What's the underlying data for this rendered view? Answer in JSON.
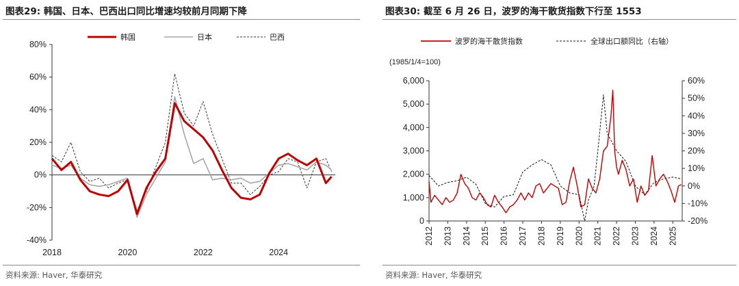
{
  "left_panel": {
    "title": "图表29: 韩国、日本、巴西出口同比增速均较前月同期下降",
    "source": "资料来源: Haver, 华泰研究"
  },
  "right_panel": {
    "title": "图表30: 截至 6 月 26 日，波罗的海干散货指数下行至 1553",
    "source": "资料来源: Haver, 华泰研究"
  },
  "chart_data": [
    {
      "type": "line",
      "title": "",
      "xlabel": "",
      "ylabel": "",
      "x_range": [
        2018.0,
        2025.5
      ],
      "ylim": [
        -40,
        80
      ],
      "y_ticks": [
        "-40%",
        "-20%",
        "0%",
        "20%",
        "40%",
        "60%",
        "80%"
      ],
      "y_tick_values": [
        -40,
        -20,
        0,
        20,
        40,
        60,
        80
      ],
      "x_ticks": [
        "2018",
        "2020",
        "2022",
        "2024"
      ],
      "x_tick_values": [
        2018,
        2020,
        2022,
        2024
      ],
      "legend_position": "top",
      "grid": false,
      "x": [
        2018.0,
        2018.25,
        2018.5,
        2018.75,
        2019.0,
        2019.25,
        2019.5,
        2019.75,
        2020.0,
        2020.25,
        2020.5,
        2020.75,
        2021.0,
        2021.25,
        2021.5,
        2021.75,
        2022.0,
        2022.25,
        2022.5,
        2022.75,
        2023.0,
        2023.25,
        2023.5,
        2023.75,
        2024.0,
        2024.25,
        2024.5,
        2024.75,
        2025.0,
        2025.25,
        2025.4
      ],
      "series": [
        {
          "name": "韩国",
          "color": "#c00000",
          "style": "solid-thick",
          "values": [
            10,
            3,
            8,
            -3,
            -10,
            -12,
            -13,
            -10,
            -3,
            -24,
            -8,
            2,
            10,
            44,
            33,
            28,
            23,
            15,
            3,
            -8,
            -14,
            -15,
            -12,
            1,
            10,
            13,
            9,
            6,
            10,
            -5,
            -1
          ]
        },
        {
          "name": "日本",
          "color": "#a6a6a6",
          "style": "solid",
          "values": [
            6,
            4,
            6,
            -2,
            -6,
            -7,
            -6,
            -4,
            -2,
            -26,
            -12,
            -2,
            8,
            48,
            25,
            7,
            10,
            -3,
            -2,
            -3,
            -2,
            -5,
            -4,
            1,
            6,
            7,
            5,
            3,
            8,
            6,
            3
          ]
        },
        {
          "name": "巴西",
          "color": "#333333",
          "style": "dashed",
          "values": [
            12,
            8,
            20,
            2,
            -4,
            -2,
            -8,
            -5,
            -3,
            -22,
            -10,
            5,
            20,
            62,
            38,
            30,
            45,
            25,
            10,
            -5,
            -5,
            -12,
            -7,
            0,
            2,
            10,
            8,
            -8,
            8,
            10,
            2
          ]
        }
      ]
    },
    {
      "type": "line",
      "title": "",
      "y_unit": "(1985/1/4=100)",
      "xlabel": "",
      "ylabel": "",
      "x_range": [
        2012.0,
        2025.5
      ],
      "ylim": [
        0,
        6000
      ],
      "y2lim": [
        -20,
        60
      ],
      "y_ticks": [
        "0",
        "1,000",
        "2,000",
        "3,000",
        "4,000",
        "5,000",
        "6,000"
      ],
      "y_tick_values": [
        0,
        1000,
        2000,
        3000,
        4000,
        5000,
        6000
      ],
      "y2_ticks": [
        "-20%",
        "-10%",
        "0%",
        "10%",
        "20%",
        "30%",
        "40%",
        "50%",
        "60%"
      ],
      "y2_tick_values": [
        -20,
        -10,
        0,
        10,
        20,
        30,
        40,
        50,
        60
      ],
      "x_ticks": [
        "2012",
        "2013",
        "2014",
        "2015",
        "2016",
        "2017",
        "2018",
        "2019",
        "2020",
        "2021",
        "2022",
        "2023",
        "2024",
        "2025"
      ],
      "x_tick_values": [
        2012,
        2013,
        2014,
        2015,
        2016,
        2017,
        2018,
        2019,
        2020,
        2021,
        2022,
        2023,
        2024,
        2025
      ],
      "legend_position": "top",
      "grid": false,
      "series": [
        {
          "name": "波罗的海干散货指数",
          "color": "#c00000",
          "style": "solid",
          "axis": "left",
          "x": [
            2012.0,
            2012.1,
            2012.3,
            2012.5,
            2012.7,
            2012.9,
            2013.1,
            2013.3,
            2013.5,
            2013.7,
            2013.9,
            2014.1,
            2014.3,
            2014.5,
            2014.7,
            2014.9,
            2015.1,
            2015.3,
            2015.5,
            2015.7,
            2015.9,
            2016.1,
            2016.3,
            2016.5,
            2016.7,
            2016.9,
            2017.1,
            2017.3,
            2017.5,
            2017.7,
            2017.9,
            2018.1,
            2018.3,
            2018.5,
            2018.7,
            2018.9,
            2019.1,
            2019.3,
            2019.5,
            2019.7,
            2019.9,
            2020.1,
            2020.3,
            2020.5,
            2020.7,
            2020.9,
            2021.1,
            2021.3,
            2021.5,
            2021.7,
            2021.8,
            2021.9,
            2022.0,
            2022.1,
            2022.3,
            2022.5,
            2022.7,
            2022.9,
            2023.1,
            2023.3,
            2023.5,
            2023.7,
            2023.9,
            2024.1,
            2024.3,
            2024.5,
            2024.7,
            2024.9,
            2025.1,
            2025.3,
            2025.45
          ],
          "values": [
            1700,
            800,
            1100,
            900,
            700,
            1000,
            800,
            900,
            1200,
            2000,
            1600,
            1400,
            1000,
            900,
            1200,
            1000,
            700,
            600,
            1100,
            800,
            600,
            350,
            600,
            700,
            900,
            1200,
            900,
            1200,
            1000,
            1500,
            1600,
            1200,
            1400,
            1600,
            1500,
            1400,
            700,
            800,
            1700,
            2300,
            1500,
            600,
            700,
            1800,
            1400,
            1200,
            1800,
            3000,
            3200,
            4500,
            5600,
            3000,
            2300,
            2000,
            2600,
            2200,
            1500,
            1800,
            800,
            1500,
            1100,
            1300,
            2800,
            1500,
            1800,
            2000,
            1700,
            1300,
            800,
            1500,
            1553
          ]
        },
        {
          "name": "全球出口额同比（右轴）",
          "color": "#111111",
          "style": "dashed",
          "axis": "right",
          "x": [
            2012.0,
            2012.5,
            2013.0,
            2013.5,
            2014.0,
            2014.5,
            2015.0,
            2015.5,
            2016.0,
            2016.5,
            2017.0,
            2017.5,
            2018.0,
            2018.5,
            2019.0,
            2019.5,
            2020.0,
            2020.3,
            2020.5,
            2020.8,
            2021.0,
            2021.3,
            2021.5,
            2022.0,
            2022.5,
            2023.0,
            2023.5,
            2024.0,
            2024.5,
            2025.0,
            2025.45
          ],
          "values": [
            6,
            0,
            2,
            3,
            5,
            1,
            -10,
            -12,
            -6,
            -5,
            8,
            12,
            15,
            12,
            0,
            -4,
            -5,
            -20,
            -8,
            0,
            20,
            52,
            30,
            20,
            14,
            0,
            -5,
            2,
            4,
            5,
            4
          ]
        }
      ]
    }
  ]
}
